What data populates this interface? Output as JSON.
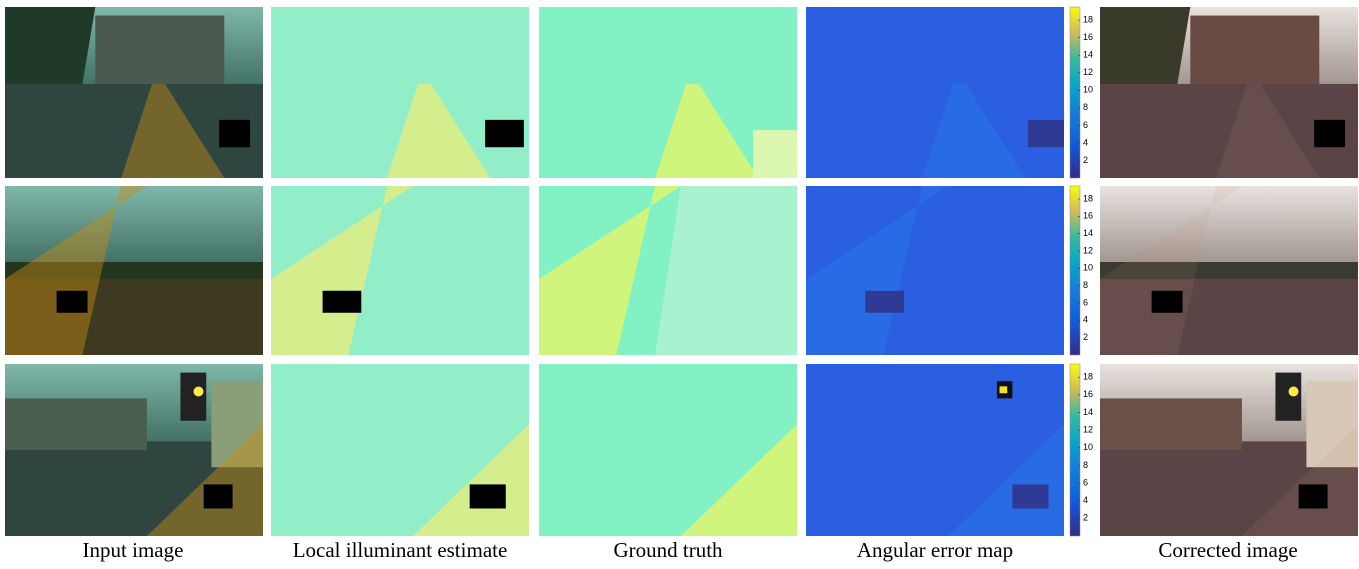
{
  "captions": [
    "Input image",
    "Local illuminant estimate",
    "Ground truth",
    "Angular error map",
    "Corrected image"
  ],
  "colorbar": {
    "lim": [
      0,
      19.5
    ],
    "ticks": [
      2,
      4,
      6,
      8,
      10,
      12,
      14,
      16,
      18
    ]
  }
}
